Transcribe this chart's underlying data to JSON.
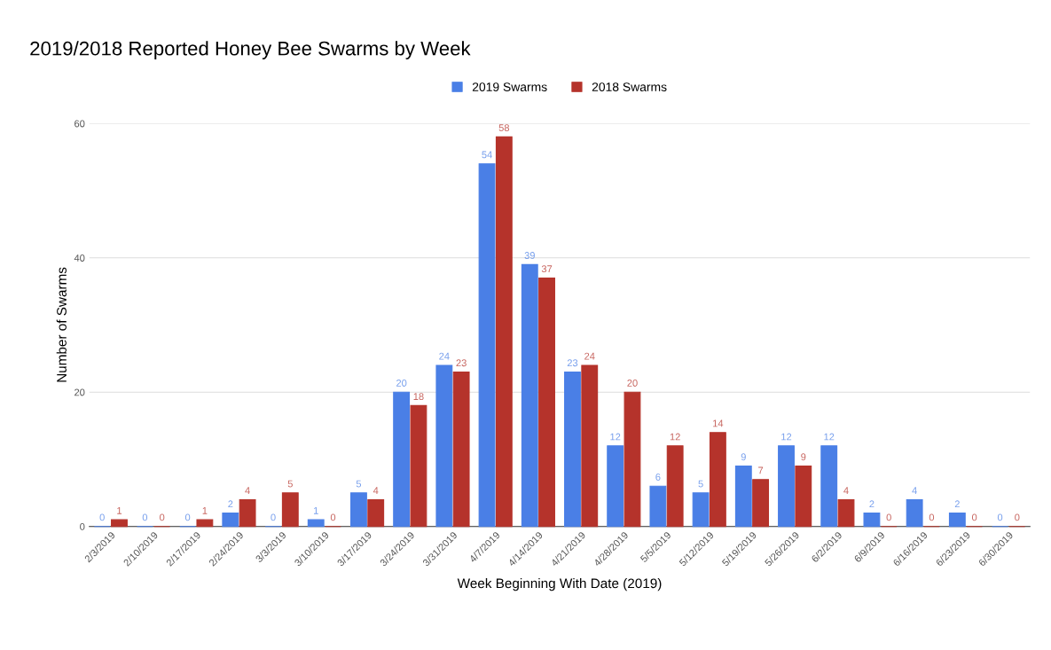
{
  "chart_data": {
    "type": "bar",
    "title": "2019/2018 Reported Honey Bee Swarms by Week",
    "xlabel": "Week Beginning With Date (2019)",
    "ylabel": "Number of Swarms",
    "categories": [
      "2/3/2019",
      "2/10/2019",
      "2/17/2019",
      "2/24/2019",
      "3/3/2019",
      "3/10/2019",
      "3/17/2019",
      "3/24/2019",
      "3/31/2019",
      "4/7/2019",
      "4/14/2019",
      "4/21/2019",
      "4/28/2019",
      "5/5/2019",
      "5/12/2019",
      "5/19/2019",
      "5/26/2019",
      "6/2/2019",
      "6/9/2019",
      "6/16/2019",
      "6/23/2019",
      "6/30/2019"
    ],
    "series": [
      {
        "name": "2019 Swarms",
        "color": "#4a7fe6",
        "values": [
          0,
          0,
          0,
          2,
          0,
          1,
          5,
          20,
          24,
          54,
          39,
          23,
          12,
          6,
          5,
          9,
          12,
          12,
          2,
          4,
          2,
          0
        ]
      },
      {
        "name": "2018 Swarms",
        "color": "#b5332b",
        "values": [
          1,
          0,
          1,
          4,
          5,
          0,
          4,
          18,
          23,
          58,
          37,
          24,
          20,
          12,
          14,
          7,
          9,
          4,
          0,
          0,
          0,
          0
        ]
      }
    ],
    "ylim": [
      0,
      60
    ],
    "yticks": [
      0,
      20,
      40,
      60
    ],
    "grid": "y",
    "legend": "top",
    "data_labels": true
  }
}
